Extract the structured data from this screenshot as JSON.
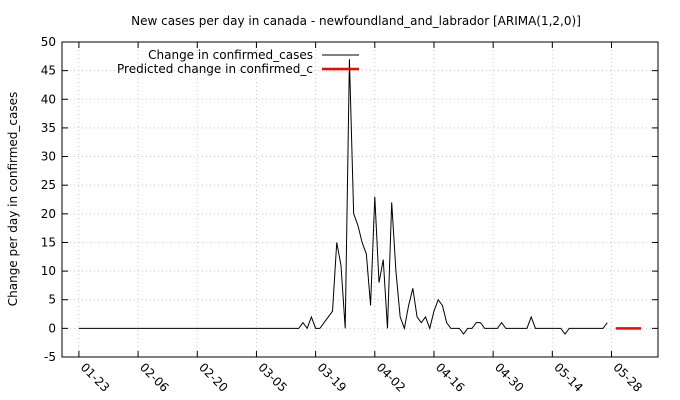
{
  "chart_data": {
    "type": "line",
    "title": "New cases per day in canada - newfoundland_and_labrador [ARIMA(1,2,0)]",
    "xlabel": "",
    "ylabel": "Change per day in confirmed_cases",
    "ylim": [
      -5,
      50
    ],
    "yticks": [
      -5,
      0,
      5,
      10,
      15,
      20,
      25,
      30,
      35,
      40,
      45,
      50
    ],
    "xlim": [
      "2020-01-19",
      "2020-06-08"
    ],
    "xticks": [
      "01-23",
      "02-06",
      "02-20",
      "03-05",
      "03-19",
      "04-02",
      "04-16",
      "04-30",
      "05-14",
      "05-28"
    ],
    "grid": true,
    "legend_position": "top-left",
    "series": [
      {
        "name": "Change in confirmed_cases",
        "color": "#000000",
        "points": [
          [
            "2020-01-23",
            0
          ],
          [
            "2020-03-15",
            0
          ],
          [
            "2020-03-16",
            1
          ],
          [
            "2020-03-17",
            0
          ],
          [
            "2020-03-18",
            2
          ],
          [
            "2020-03-19",
            0
          ],
          [
            "2020-03-20",
            0
          ],
          [
            "2020-03-21",
            1
          ],
          [
            "2020-03-22",
            2
          ],
          [
            "2020-03-23",
            3
          ],
          [
            "2020-03-24",
            15
          ],
          [
            "2020-03-25",
            11
          ],
          [
            "2020-03-26",
            0
          ],
          [
            "2020-03-27",
            47
          ],
          [
            "2020-03-28",
            20
          ],
          [
            "2020-03-29",
            18
          ],
          [
            "2020-03-30",
            15
          ],
          [
            "2020-03-31",
            13
          ],
          [
            "2020-04-01",
            4
          ],
          [
            "2020-04-02",
            23
          ],
          [
            "2020-04-03",
            8
          ],
          [
            "2020-04-04",
            12
          ],
          [
            "2020-04-05",
            0
          ],
          [
            "2020-04-06",
            22
          ],
          [
            "2020-04-07",
            10
          ],
          [
            "2020-04-08",
            2
          ],
          [
            "2020-04-09",
            0
          ],
          [
            "2020-04-10",
            4
          ],
          [
            "2020-04-11",
            7
          ],
          [
            "2020-04-12",
            2
          ],
          [
            "2020-04-13",
            1
          ],
          [
            "2020-04-14",
            2
          ],
          [
            "2020-04-15",
            0
          ],
          [
            "2020-04-16",
            3
          ],
          [
            "2020-04-17",
            5
          ],
          [
            "2020-04-18",
            4
          ],
          [
            "2020-04-19",
            1
          ],
          [
            "2020-04-20",
            0
          ],
          [
            "2020-04-21",
            0
          ],
          [
            "2020-04-22",
            0
          ],
          [
            "2020-04-23",
            -1
          ],
          [
            "2020-04-24",
            0
          ],
          [
            "2020-04-25",
            0
          ],
          [
            "2020-04-26",
            1
          ],
          [
            "2020-04-27",
            1
          ],
          [
            "2020-04-28",
            0
          ],
          [
            "2020-04-29",
            0
          ],
          [
            "2020-04-30",
            0
          ],
          [
            "2020-05-01",
            0
          ],
          [
            "2020-05-02",
            1
          ],
          [
            "2020-05-03",
            0
          ],
          [
            "2020-05-04",
            0
          ],
          [
            "2020-05-05",
            0
          ],
          [
            "2020-05-06",
            0
          ],
          [
            "2020-05-07",
            0
          ],
          [
            "2020-05-08",
            0
          ],
          [
            "2020-05-09",
            2
          ],
          [
            "2020-05-10",
            0
          ],
          [
            "2020-05-11",
            0
          ],
          [
            "2020-05-12",
            0
          ],
          [
            "2020-05-13",
            0
          ],
          [
            "2020-05-14",
            0
          ],
          [
            "2020-05-15",
            0
          ],
          [
            "2020-05-16",
            0
          ],
          [
            "2020-05-17",
            -1
          ],
          [
            "2020-05-18",
            0
          ],
          [
            "2020-05-19",
            0
          ],
          [
            "2020-05-20",
            0
          ],
          [
            "2020-05-21",
            0
          ],
          [
            "2020-05-22",
            0
          ],
          [
            "2020-05-23",
            0
          ],
          [
            "2020-05-24",
            0
          ],
          [
            "2020-05-25",
            0
          ],
          [
            "2020-05-26",
            0
          ],
          [
            "2020-05-27",
            1
          ]
        ]
      },
      {
        "name": "Predicted change in confirmed_c",
        "color": "#ff0000",
        "points": [
          [
            "2020-05-29",
            0
          ],
          [
            "2020-05-30",
            0
          ],
          [
            "2020-05-31",
            0
          ],
          [
            "2020-06-01",
            0
          ],
          [
            "2020-06-02",
            0
          ],
          [
            "2020-06-03",
            0
          ],
          [
            "2020-06-04",
            0
          ]
        ]
      }
    ]
  }
}
